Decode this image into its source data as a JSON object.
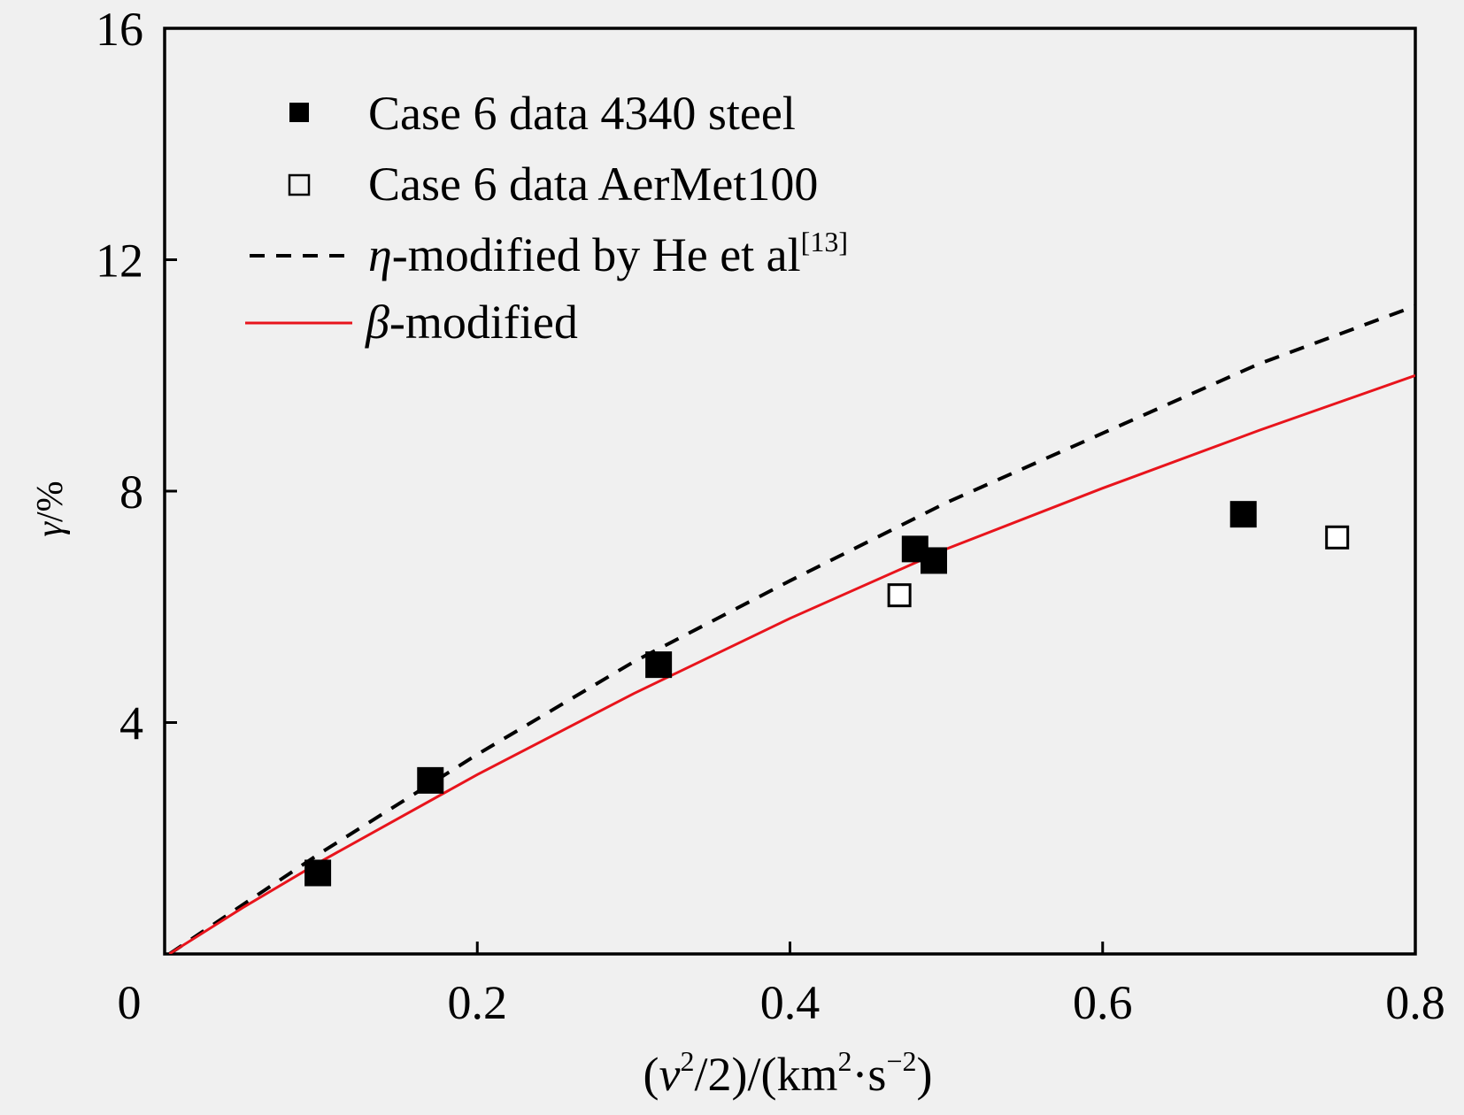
{
  "chart_data": {
    "type": "scatter",
    "x_axis": {
      "range": [
        0,
        0.8
      ],
      "ticks": [
        0,
        0.2,
        0.4,
        0.6,
        0.8
      ],
      "tick_labels": [
        "0",
        "0.2",
        "0.4",
        "0.6",
        "0.8"
      ],
      "label": {
        "open": "(",
        "var": "v",
        "sup1": "2",
        "mid": "/2)/(km",
        "sup2": "2",
        "dot": "·s",
        "sup3": "−2",
        "close": ")"
      }
    },
    "y_axis": {
      "range": [
        0,
        16
      ],
      "ticks": [
        4,
        8,
        12,
        16
      ],
      "tick_labels": [
        "4",
        "8",
        "12",
        "16"
      ],
      "label": {
        "var": "γ",
        "unit": "/%"
      }
    },
    "grid": false,
    "legend": {
      "placement": "top-left",
      "entries": [
        {
          "key": "steel",
          "text": "Case 6 data 4340 steel"
        },
        {
          "key": "aermet",
          "text": "Case 6 data AerMet100"
        },
        {
          "key": "eta",
          "sym": "η",
          "text": "-modified by He et al",
          "sup": "[13]"
        },
        {
          "key": "beta",
          "sym": "β",
          "text": "-modified"
        }
      ]
    },
    "series": [
      {
        "key": "steel",
        "marker": "filled-square",
        "color": "#000000",
        "points": [
          [
            0.098,
            1.4
          ],
          [
            0.17,
            3.0
          ],
          [
            0.316,
            5.0
          ],
          [
            0.48,
            7.0
          ],
          [
            0.492,
            6.8
          ],
          [
            0.69,
            7.6
          ]
        ]
      },
      {
        "key": "aermet",
        "marker": "open-square",
        "color": "#000000",
        "points": [
          [
            0.47,
            6.2
          ],
          [
            0.75,
            7.2
          ]
        ]
      },
      {
        "key": "eta",
        "style": "dashed",
        "color": "#000000",
        "points": [
          [
            0.003,
            0.0
          ],
          [
            0.05,
            0.85
          ],
          [
            0.1,
            1.75
          ],
          [
            0.2,
            3.45
          ],
          [
            0.3,
            5.05
          ],
          [
            0.4,
            6.45
          ],
          [
            0.5,
            7.8
          ],
          [
            0.6,
            9.0
          ],
          [
            0.7,
            10.2
          ],
          [
            0.8,
            11.2
          ]
        ]
      },
      {
        "key": "beta",
        "style": "solid",
        "color": "#e8141c",
        "points": [
          [
            0.003,
            0.0
          ],
          [
            0.05,
            0.8
          ],
          [
            0.1,
            1.6
          ],
          [
            0.2,
            3.1
          ],
          [
            0.3,
            4.5
          ],
          [
            0.4,
            5.8
          ],
          [
            0.5,
            7.0
          ],
          [
            0.6,
            8.05
          ],
          [
            0.7,
            9.05
          ],
          [
            0.8,
            10.0
          ]
        ]
      }
    ]
  }
}
